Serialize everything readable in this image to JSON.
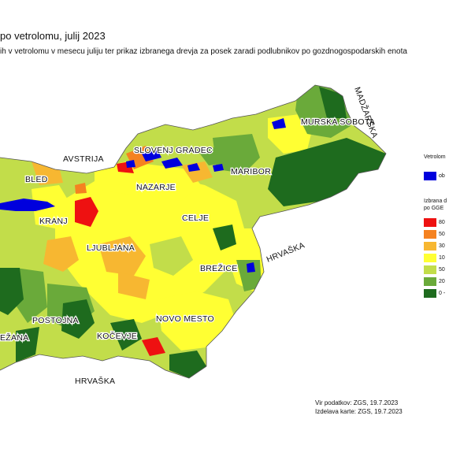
{
  "title": "po vetrolomu, julij 2023",
  "subtitle": "ih v vetrolomu v mesecu juliju ter prikaz izbranega drevja za posek zaradi podlubnikov po gozdnogospodarskih enota",
  "cities": {
    "murska_sobota": "MURSKA SOBOTA",
    "slovenj_gradec": "SLOVENJ GRADEC",
    "maribor": "MARIBOR",
    "bled": "BLED",
    "nazarje": "NAZARJE",
    "kranj": "KRANJ",
    "celje": "CELJE",
    "ljubljana": "LJUBLJANA",
    "brezice": "BREŽICE",
    "postojna": "POSTOJNA",
    "novo_mesto": "NOVO MESTO",
    "kocevje": "KOČEVJE",
    "sezana": "EŽANA"
  },
  "countries": {
    "austria": "AVSTRIJA",
    "hungary": "MADŽARSKA",
    "croatia_east": "HRVAŠKA",
    "croatia_south": "HRVAŠKA"
  },
  "legend": {
    "windthrow_title": "Vetrolom",
    "windthrow_item": "ob",
    "windthrow_color": "#0000dd",
    "bark_title_1": "Izbrana d",
    "bark_title_2": "po GGE",
    "classes": [
      {
        "label": "80",
        "color": "#ee1111"
      },
      {
        "label": "50",
        "color": "#f58220"
      },
      {
        "label": "30",
        "color": "#f7b731"
      },
      {
        "label": "10",
        "color": "#ffff33"
      },
      {
        "label": "50",
        "color": "#c2dd4a"
      },
      {
        "label": "20",
        "color": "#6aaa3a"
      },
      {
        "label": "0 -",
        "color": "#1e6b1e"
      }
    ]
  },
  "source": {
    "data": "Vir podatkov: ZGS, 19.7.2023",
    "made": "Izdelava karte: ZGS, 19.7.2023"
  }
}
